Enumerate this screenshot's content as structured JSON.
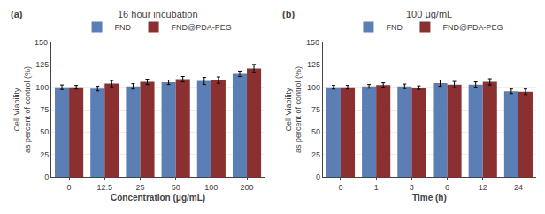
{
  "chart_data": [
    {
      "type": "bar",
      "title": "16 hour incubation",
      "xlabel": "Concentration (μg/mL)",
      "ylabel": "Cell Viability\nas percent of control (%)",
      "categories": [
        "0",
        "12.5",
        "25",
        "50",
        "100",
        "200"
      ],
      "series": [
        {
          "name": "FND",
          "color": "#5b7fb5",
          "values": [
            100,
            98.5,
            101,
            105.5,
            107,
            115
          ],
          "errors": [
            2.5,
            2.5,
            3,
            2.5,
            4,
            3
          ]
        },
        {
          "name": "FND@PDA-PEG",
          "color": "#8b3030",
          "values": [
            100,
            104,
            106,
            109,
            108,
            121
          ],
          "errors": [
            2,
            3.5,
            3,
            3,
            3.5,
            4.5
          ]
        }
      ],
      "ylim": [
        0,
        150
      ],
      "yticks": [
        0,
        25,
        50,
        75,
        100,
        125
      ],
      "grid": true,
      "legend": "top",
      "annotations": [
        {
          "text": "(a)"
        },
        {
          "text": "150",
          "y": 150
        }
      ]
    },
    {
      "type": "bar",
      "title": "100 μg/mL",
      "xlabel": "Time (h)",
      "ylabel": "Cell Viability\nas percent of control (%)",
      "categories": [
        "0",
        "1",
        "3",
        "6",
        "12",
        "24"
      ],
      "series": [
        {
          "name": "FND",
          "color": "#5b7fb5",
          "values": [
            100,
            101,
            101,
            104.5,
            103,
            95.5
          ],
          "errors": [
            2,
            2,
            2.5,
            3.5,
            3,
            2.5
          ]
        },
        {
          "name": "FND@PDA-PEG",
          "color": "#8b3030",
          "values": [
            100,
            102.5,
            99.5,
            103,
            106,
            95
          ],
          "errors": [
            2,
            2.5,
            2,
            3.5,
            3.5,
            3
          ]
        }
      ],
      "ylim": [
        0,
        150
      ],
      "yticks": [
        0,
        25,
        50,
        75,
        100,
        125
      ],
      "grid": true,
      "legend": "top",
      "annotations": [
        {
          "text": "(b)"
        },
        {
          "text": "150",
          "y": 150
        }
      ]
    }
  ]
}
